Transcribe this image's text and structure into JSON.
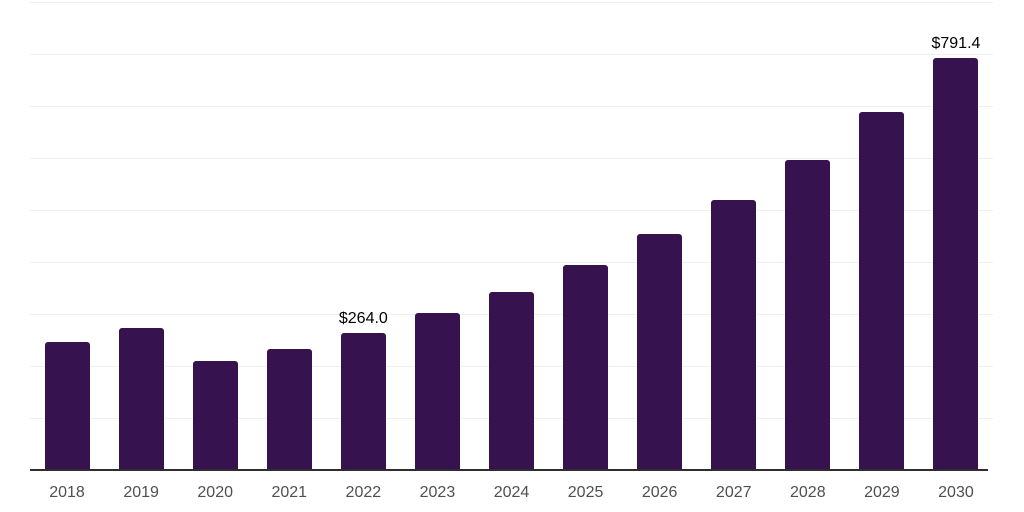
{
  "chart_data": {
    "type": "bar",
    "title": "",
    "xlabel": "",
    "ylabel": "",
    "categories": [
      "2018",
      "2019",
      "2020",
      "2021",
      "2022",
      "2023",
      "2024",
      "2025",
      "2026",
      "2027",
      "2028",
      "2029",
      "2030"
    ],
    "values": [
      246,
      274,
      210,
      232,
      264.0,
      301,
      343,
      395,
      453,
      519,
      597,
      688,
      791.4
    ],
    "data_labels": [
      "",
      "",
      "",
      "",
      "$264.0",
      "",
      "",
      "",
      "",
      "",
      "",
      "",
      "$791.4"
    ],
    "ylim": [
      0,
      900
    ],
    "gridline_interval": 100,
    "grid": "horizontal-only",
    "y_tick_labels_visible": false,
    "legend": "none",
    "colors": {
      "bar": "#36134F",
      "gridline": "#f0f0f0",
      "axis_line": "#2e2e2e",
      "x_tick_label": "#4f4f4f",
      "value_label": "#000000",
      "background": "#ffffff"
    }
  }
}
